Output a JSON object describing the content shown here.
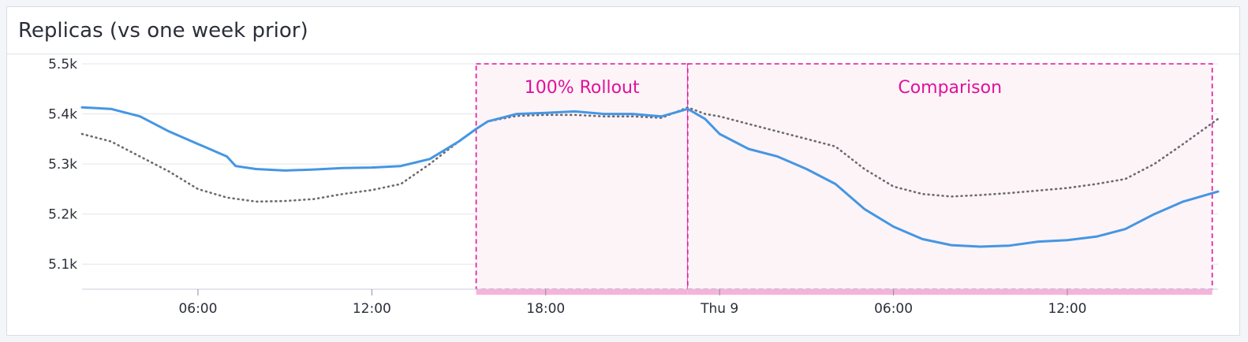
{
  "panel": {
    "title": "Replicas (vs one week prior)"
  },
  "chart_data": {
    "type": "line",
    "title": "Replicas (vs one week prior)",
    "x_unit": "hours since 00:00 of the first day shown",
    "xlim": [
      2.0,
      41.2
    ],
    "ylim": [
      5050,
      5500
    ],
    "yticks": [
      {
        "value": 5500,
        "label": "5.5k"
      },
      {
        "value": 5400,
        "label": "5.4k"
      },
      {
        "value": 5300,
        "label": "5.3k"
      },
      {
        "value": 5200,
        "label": "5.2k"
      },
      {
        "value": 5100,
        "label": "5.1k"
      }
    ],
    "xticks": [
      {
        "value": 6,
        "label": "06:00"
      },
      {
        "value": 12,
        "label": "12:00"
      },
      {
        "value": 18,
        "label": "18:00"
      },
      {
        "value": 24,
        "label": "Thu 9"
      },
      {
        "value": 30,
        "label": "06:00"
      },
      {
        "value": 36,
        "label": "12:00"
      }
    ],
    "grid": "horizontal",
    "annotations": [
      {
        "label": "100% Rollout",
        "x_start": 15.6,
        "x_end": 22.9,
        "color": "#e0119b"
      },
      {
        "label": "Comparison",
        "x_start": 22.9,
        "x_end": 41.0,
        "color": "#e0119b"
      }
    ],
    "series": [
      {
        "style": "solid",
        "color": "#4596e2",
        "x": [
          2,
          3,
          4,
          5,
          6,
          7,
          7.3,
          8,
          9,
          10,
          11,
          12,
          13,
          14,
          15,
          15.6,
          16,
          17,
          18,
          19,
          20,
          21,
          22,
          22.6,
          22.9,
          23.5,
          24,
          25,
          26,
          27,
          28,
          29,
          30,
          31,
          32,
          33,
          34,
          35,
          36,
          37,
          38,
          39,
          40,
          41.2
        ],
        "y": [
          5413,
          5410,
          5395,
          5365,
          5340,
          5315,
          5296,
          5290,
          5287,
          5289,
          5292,
          5293,
          5296,
          5310,
          5345,
          5370,
          5385,
          5400,
          5402,
          5405,
          5400,
          5400,
          5395,
          5405,
          5410,
          5390,
          5360,
          5330,
          5315,
          5290,
          5260,
          5210,
          5175,
          5150,
          5138,
          5135,
          5137,
          5145,
          5148,
          5155,
          5170,
          5200,
          5225,
          5245
        ]
      },
      {
        "style": "dotted",
        "color": "#6b6b70",
        "x": [
          2,
          3,
          4,
          5,
          6,
          7,
          8,
          9,
          10,
          11,
          12,
          13,
          14,
          15,
          15.6,
          16,
          17,
          18,
          19,
          20,
          21,
          22,
          22.9,
          23.5,
          24,
          25,
          26,
          27,
          28,
          29,
          30,
          31,
          32,
          33,
          34,
          35,
          36,
          37,
          38,
          39,
          40,
          41.2
        ],
        "y": [
          5360,
          5345,
          5315,
          5285,
          5250,
          5233,
          5225,
          5226,
          5230,
          5240,
          5248,
          5260,
          5300,
          5345,
          5370,
          5385,
          5396,
          5398,
          5398,
          5395,
          5395,
          5392,
          5413,
          5400,
          5395,
          5380,
          5365,
          5350,
          5335,
          5290,
          5255,
          5240,
          5235,
          5238,
          5242,
          5247,
          5252,
          5260,
          5270,
          5300,
          5340,
          5390
        ]
      }
    ]
  }
}
